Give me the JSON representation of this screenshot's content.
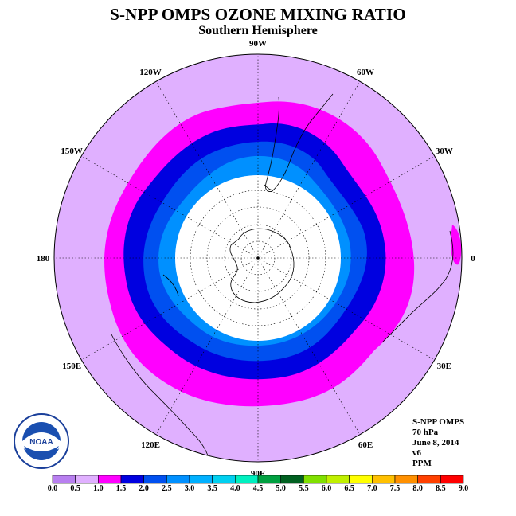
{
  "title": "S-NPP OMPS OZONE MIXING RATIO",
  "subtitle": "Southern Hemisphere",
  "longitude_labels": [
    {
      "text": "90W",
      "lon": -90
    },
    {
      "text": "60W",
      "lon": -60
    },
    {
      "text": "30W",
      "lon": -30
    },
    {
      "text": "0",
      "lon": 0
    },
    {
      "text": "30E",
      "lon": 30
    },
    {
      "text": "60E",
      "lon": 60
    },
    {
      "text": "90E",
      "lon": 90
    },
    {
      "text": "120E",
      "lon": 120
    },
    {
      "text": "150E",
      "lon": 150
    },
    {
      "text": "180",
      "lon": 180
    },
    {
      "text": "150W",
      "lon": -150
    },
    {
      "text": "120W",
      "lon": -120
    }
  ],
  "info": {
    "instrument": "S-NPP OMPS",
    "level": "70 hPa",
    "date": "June 8, 2014",
    "version": "v6",
    "units": "PPM"
  },
  "logo": {
    "text": "NOAA"
  },
  "colorbar": {
    "ticks": [
      "0.0",
      "0.5",
      "1.0",
      "1.5",
      "2.0",
      "2.5",
      "3.0",
      "3.5",
      "4.0",
      "4.5",
      "5.0",
      "5.5",
      "6.0",
      "6.5",
      "7.0",
      "7.5",
      "8.0",
      "8.5",
      "9.0"
    ],
    "colors": [
      "#b87ff0",
      "#e0b0ff",
      "#ff00ff",
      "#0000e0",
      "#0050f0",
      "#0090ff",
      "#00b0ff",
      "#00d0f0",
      "#00f0c0",
      "#00a040",
      "#006020",
      "#80e000",
      "#c0f000",
      "#ffff00",
      "#ffc000",
      "#ff9000",
      "#ff4000",
      "#ff0000",
      "#8b5a3a"
    ]
  },
  "field": {
    "bands": [
      {
        "range": "1.0-1.5",
        "color": "#ff00ff"
      },
      {
        "range": "1.5-2.0",
        "color": "#0000e0"
      },
      {
        "range": "2.0-2.5",
        "color": "#0050f0"
      },
      {
        "range": "2.5-3.0",
        "color": "#0090ff"
      },
      {
        "range": "no data",
        "color": "#ffffff"
      }
    ],
    "background_color": "#e0b0ff"
  }
}
